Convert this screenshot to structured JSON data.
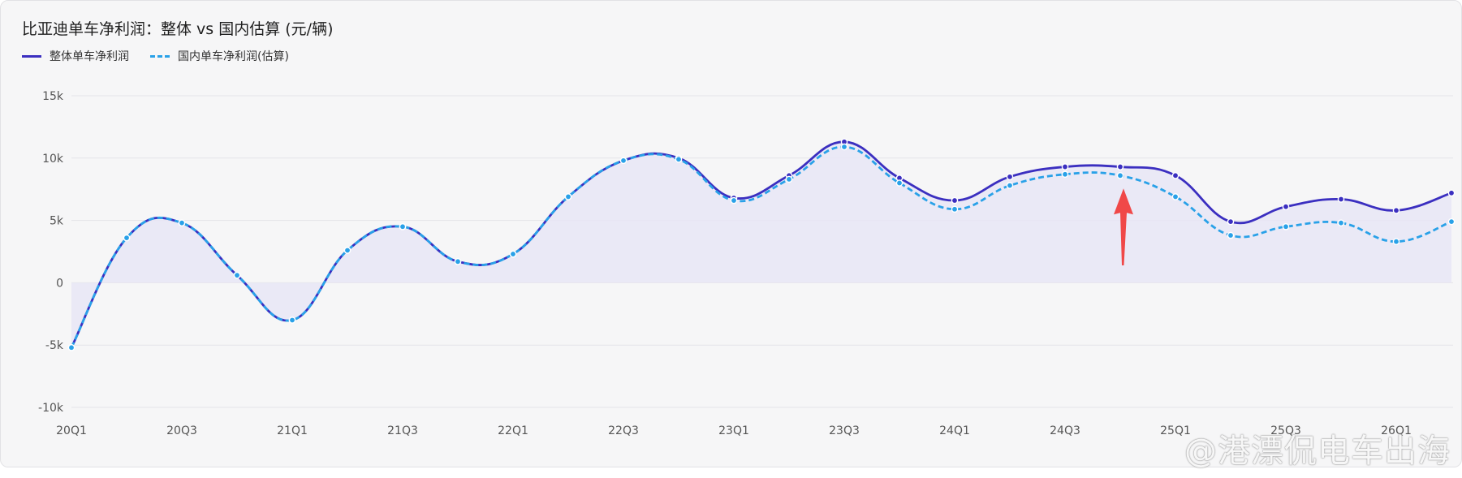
{
  "title": "比亚迪单车净利润：整体 vs 国内估算 (元/辆)",
  "legend": [
    {
      "label": "整体单车净利润",
      "style": "solid",
      "color": "#3b2fc0"
    },
    {
      "label": "国内单车净利润(估算)",
      "style": "dashed",
      "color": "#29a1e8"
    }
  ],
  "watermark": "@港漂侃电车出海",
  "colors": {
    "overall": "#3b2fc0",
    "domestic": "#29a1e8",
    "area": "#e8e6f6",
    "arrow": "#f04848",
    "grid": "#e4e4e8"
  },
  "chart_data": {
    "type": "line",
    "categories": [
      "20Q1",
      "20Q2",
      "20Q3",
      "20Q4",
      "21Q1",
      "21Q2",
      "21Q3",
      "21Q4",
      "22Q1",
      "22Q2",
      "22Q3",
      "22Q4",
      "23Q1",
      "23Q2",
      "23Q3",
      "23Q4",
      "24Q1",
      "24Q2",
      "24Q3",
      "24Q4",
      "25Q1",
      "25Q2",
      "25Q3",
      "25Q4",
      "26Q1",
      "26Q2"
    ],
    "x_tick_labels": [
      "20Q1",
      "20Q3",
      "21Q1",
      "21Q3",
      "22Q1",
      "22Q3",
      "23Q1",
      "23Q3",
      "24Q1",
      "24Q3",
      "25Q1",
      "25Q3",
      "26Q1"
    ],
    "series": [
      {
        "name": "整体单车净利润",
        "values": [
          -5200,
          3600,
          4800,
          600,
          -3000,
          2600,
          4500,
          1700,
          2300,
          6900,
          9800,
          10000,
          6800,
          8600,
          11300,
          8400,
          6600,
          8500,
          9300,
          9300,
          8600,
          4900,
          6100,
          6700,
          5800,
          7200
        ]
      },
      {
        "name": "国内单车净利润(估算)",
        "values": [
          -5200,
          3600,
          4800,
          600,
          -3000,
          2600,
          4500,
          1700,
          2300,
          6900,
          9800,
          9900,
          6600,
          8300,
          10900,
          8000,
          5900,
          7800,
          8700,
          8600,
          6900,
          3800,
          4500,
          4800,
          3300,
          4900
        ]
      }
    ],
    "y_ticks": [
      15000,
      10000,
      5000,
      0,
      -5000,
      -10000
    ],
    "y_tick_labels": [
      "15k",
      "10k",
      "5k",
      "0",
      "-5k",
      "-10k"
    ],
    "ylim": [
      -10000,
      15000
    ],
    "grid": true,
    "legend_position": "top-left",
    "annotation": "red arrow pointing up at 24Q4"
  }
}
